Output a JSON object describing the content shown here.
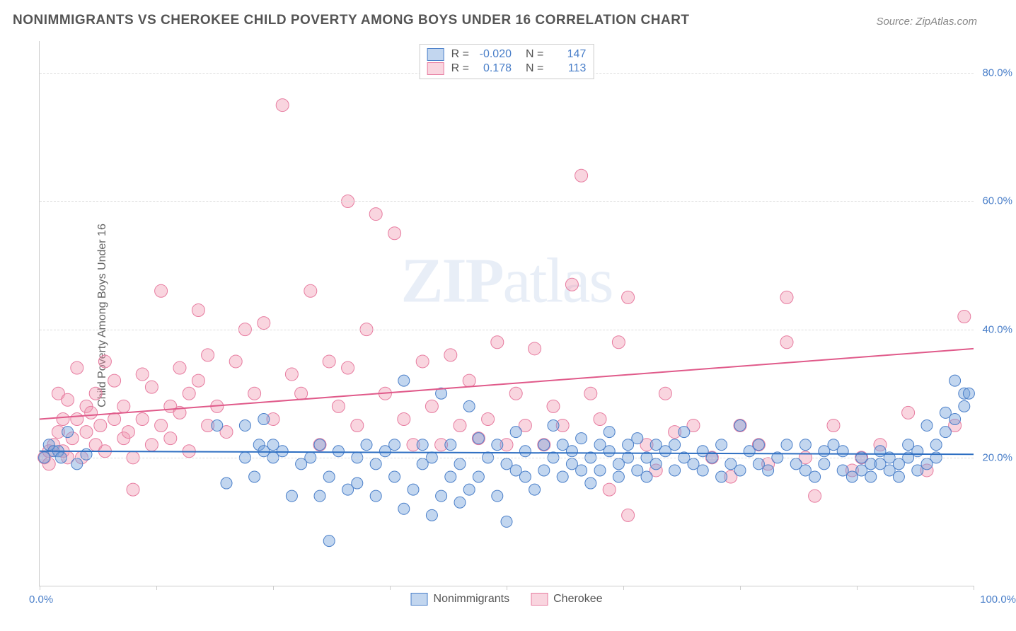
{
  "title": "NONIMMIGRANTS VS CHEROKEE CHILD POVERTY AMONG BOYS UNDER 16 CORRELATION CHART",
  "source": "Source: ZipAtlas.com",
  "ylabel": "Child Poverty Among Boys Under 16",
  "watermark_a": "ZIP",
  "watermark_b": "atlas",
  "xaxis": {
    "min": 0,
    "max": 100,
    "tick_positions": [
      0,
      12.5,
      25,
      37.5,
      50,
      62.5,
      75,
      87.5,
      100
    ],
    "label_min": "0.0%",
    "label_max": "100.0%",
    "label_color": "#4a7fc9"
  },
  "yaxis": {
    "min": 0,
    "max": 85,
    "ticks": [
      {
        "v": 20,
        "label": "20.0%"
      },
      {
        "v": 40,
        "label": "40.0%"
      },
      {
        "v": 60,
        "label": "60.0%"
      },
      {
        "v": 80,
        "label": "80.0%"
      }
    ],
    "label_color": "#4a7fc9",
    "grid_color": "#dddddd"
  },
  "series": [
    {
      "key": "nonimmigrants",
      "name": "Nonimmigrants",
      "marker_fill": "rgba(120,165,220,0.45)",
      "marker_stroke": "#4a7fc9",
      "marker_r": 8,
      "trend_color": "#2e6fc2",
      "trend_width": 2,
      "trend": {
        "y_at_xmin": 21.0,
        "y_at_xmax": 20.5
      },
      "R": "-0.020",
      "N": "147",
      "points": [
        [
          0.5,
          20
        ],
        [
          1,
          22
        ],
        [
          1.5,
          21
        ],
        [
          2,
          21
        ],
        [
          2.3,
          20
        ],
        [
          3,
          24
        ],
        [
          4,
          19
        ],
        [
          5,
          20.5
        ],
        [
          19,
          25
        ],
        [
          20,
          16
        ],
        [
          22,
          20
        ],
        [
          22,
          25
        ],
        [
          23,
          17
        ],
        [
          23.5,
          22
        ],
        [
          24,
          21
        ],
        [
          24,
          26
        ],
        [
          25,
          22
        ],
        [
          25,
          20
        ],
        [
          26,
          21
        ],
        [
          27,
          14
        ],
        [
          28,
          19
        ],
        [
          29,
          20
        ],
        [
          30,
          14
        ],
        [
          30,
          22
        ],
        [
          31,
          7
        ],
        [
          31,
          17
        ],
        [
          32,
          21
        ],
        [
          33,
          15
        ],
        [
          34,
          16
        ],
        [
          34,
          20
        ],
        [
          35,
          22
        ],
        [
          36,
          19
        ],
        [
          36,
          14
        ],
        [
          37,
          21
        ],
        [
          38,
          17
        ],
        [
          38,
          22
        ],
        [
          39,
          12
        ],
        [
          39,
          32
        ],
        [
          40,
          15
        ],
        [
          41,
          19
        ],
        [
          41,
          22
        ],
        [
          42,
          11
        ],
        [
          42,
          20
        ],
        [
          43,
          14
        ],
        [
          43,
          30
        ],
        [
          44,
          17
        ],
        [
          44,
          22
        ],
        [
          45,
          13
        ],
        [
          45,
          19
        ],
        [
          46,
          15
        ],
        [
          46,
          28
        ],
        [
          47,
          17
        ],
        [
          47,
          23
        ],
        [
          48,
          20
        ],
        [
          49,
          14
        ],
        [
          49,
          22
        ],
        [
          50,
          19
        ],
        [
          50,
          10
        ],
        [
          51,
          18
        ],
        [
          51,
          24
        ],
        [
          52,
          17
        ],
        [
          52,
          21
        ],
        [
          53,
          15
        ],
        [
          54,
          22
        ],
        [
          54,
          18
        ],
        [
          55,
          20
        ],
        [
          55,
          25
        ],
        [
          56,
          17
        ],
        [
          56,
          22
        ],
        [
          57,
          21
        ],
        [
          57,
          19
        ],
        [
          58,
          18
        ],
        [
          58,
          23
        ],
        [
          59,
          20
        ],
        [
          59,
          16
        ],
        [
          60,
          22
        ],
        [
          60,
          18
        ],
        [
          61,
          21
        ],
        [
          61,
          24
        ],
        [
          62,
          19
        ],
        [
          62,
          17
        ],
        [
          63,
          22
        ],
        [
          63,
          20
        ],
        [
          64,
          18
        ],
        [
          64,
          23
        ],
        [
          65,
          20
        ],
        [
          65,
          17
        ],
        [
          66,
          22
        ],
        [
          66,
          19
        ],
        [
          67,
          21
        ],
        [
          68,
          18
        ],
        [
          68,
          22
        ],
        [
          69,
          20
        ],
        [
          69,
          24
        ],
        [
          70,
          19
        ],
        [
          71,
          21
        ],
        [
          71,
          18
        ],
        [
          72,
          20
        ],
        [
          73,
          22
        ],
        [
          73,
          17
        ],
        [
          74,
          19
        ],
        [
          75,
          25
        ],
        [
          75,
          18
        ],
        [
          76,
          21
        ],
        [
          77,
          19
        ],
        [
          77,
          22
        ],
        [
          78,
          18
        ],
        [
          79,
          20
        ],
        [
          80,
          22
        ],
        [
          81,
          19
        ],
        [
          82,
          18
        ],
        [
          82,
          22
        ],
        [
          83,
          17
        ],
        [
          84,
          21
        ],
        [
          84,
          19
        ],
        [
          85,
          22
        ],
        [
          86,
          18
        ],
        [
          86,
          21
        ],
        [
          87,
          17
        ],
        [
          88,
          18
        ],
        [
          88,
          20
        ],
        [
          89,
          19
        ],
        [
          89,
          17
        ],
        [
          90,
          19
        ],
        [
          90,
          21
        ],
        [
          91,
          18
        ],
        [
          91,
          20
        ],
        [
          92,
          17
        ],
        [
          92,
          19
        ],
        [
          93,
          20
        ],
        [
          93,
          22
        ],
        [
          94,
          18
        ],
        [
          94,
          21
        ],
        [
          95,
          19
        ],
        [
          95,
          25
        ],
        [
          96,
          22
        ],
        [
          96,
          20
        ],
        [
          97,
          24
        ],
        [
          97,
          27
        ],
        [
          98,
          26
        ],
        [
          98,
          32
        ],
        [
          99,
          28
        ],
        [
          99,
          30
        ],
        [
          99.5,
          30
        ]
      ]
    },
    {
      "key": "cherokee",
      "name": "Cherokee",
      "marker_fill": "rgba(240,150,175,0.40)",
      "marker_stroke": "#e77ca0",
      "marker_r": 9,
      "trend_color": "#e05a8a",
      "trend_width": 2,
      "trend": {
        "y_at_xmin": 26.0,
        "y_at_xmax": 37.0
      },
      "R": "0.178",
      "N": "113",
      "points": [
        [
          0.5,
          20
        ],
        [
          1,
          19
        ],
        [
          1,
          21
        ],
        [
          1.5,
          22
        ],
        [
          2,
          30
        ],
        [
          2,
          24
        ],
        [
          2.5,
          26
        ],
        [
          2.5,
          21
        ],
        [
          3,
          20
        ],
        [
          3,
          29
        ],
        [
          3.5,
          23
        ],
        [
          4,
          34
        ],
        [
          4,
          26
        ],
        [
          4.5,
          20
        ],
        [
          5,
          24
        ],
        [
          5,
          28
        ],
        [
          5.5,
          27
        ],
        [
          6,
          22
        ],
        [
          6,
          30
        ],
        [
          6.5,
          25
        ],
        [
          7,
          35
        ],
        [
          7,
          21
        ],
        [
          8,
          26
        ],
        [
          8,
          32
        ],
        [
          9,
          23
        ],
        [
          9,
          28
        ],
        [
          9.5,
          24
        ],
        [
          10,
          20
        ],
        [
          10,
          15
        ],
        [
          11,
          26
        ],
        [
          11,
          33
        ],
        [
          12,
          22
        ],
        [
          12,
          31
        ],
        [
          13,
          25
        ],
        [
          13,
          46
        ],
        [
          14,
          28
        ],
        [
          14,
          23
        ],
        [
          15,
          34
        ],
        [
          15,
          27
        ],
        [
          16,
          30
        ],
        [
          16,
          21
        ],
        [
          17,
          32
        ],
        [
          17,
          43
        ],
        [
          18,
          25
        ],
        [
          18,
          36
        ],
        [
          19,
          28
        ],
        [
          20,
          24
        ],
        [
          21,
          35
        ],
        [
          22,
          40
        ],
        [
          23,
          30
        ],
        [
          24,
          41
        ],
        [
          25,
          26
        ],
        [
          26,
          75
        ],
        [
          27,
          33
        ],
        [
          28,
          30
        ],
        [
          29,
          46
        ],
        [
          30,
          22
        ],
        [
          31,
          35
        ],
        [
          32,
          28
        ],
        [
          33,
          34
        ],
        [
          33,
          60
        ],
        [
          34,
          25
        ],
        [
          35,
          40
        ],
        [
          36,
          58
        ],
        [
          37,
          30
        ],
        [
          38,
          55
        ],
        [
          39,
          26
        ],
        [
          40,
          22
        ],
        [
          41,
          35
        ],
        [
          42,
          28
        ],
        [
          43,
          22
        ],
        [
          44,
          36
        ],
        [
          45,
          25
        ],
        [
          46,
          32
        ],
        [
          47,
          23
        ],
        [
          48,
          26
        ],
        [
          49,
          38
        ],
        [
          50,
          22
        ],
        [
          51,
          30
        ],
        [
          52,
          25
        ],
        [
          53,
          37
        ],
        [
          54,
          22
        ],
        [
          55,
          28
        ],
        [
          56,
          25
        ],
        [
          57,
          47
        ],
        [
          58,
          64
        ],
        [
          59,
          30
        ],
        [
          60,
          26
        ],
        [
          61,
          15
        ],
        [
          62,
          38
        ],
        [
          63,
          45
        ],
        [
          63,
          11
        ],
        [
          65,
          22
        ],
        [
          66,
          18
        ],
        [
          67,
          30
        ],
        [
          68,
          24
        ],
        [
          70,
          25
        ],
        [
          72,
          20
        ],
        [
          74,
          17
        ],
        [
          75,
          25
        ],
        [
          77,
          22
        ],
        [
          78,
          19
        ],
        [
          80,
          45
        ],
        [
          80,
          38
        ],
        [
          82,
          20
        ],
        [
          83,
          14
        ],
        [
          85,
          25
        ],
        [
          87,
          18
        ],
        [
          88,
          20
        ],
        [
          90,
          22
        ],
        [
          93,
          27
        ],
        [
          95,
          18
        ],
        [
          98,
          25
        ],
        [
          99,
          42
        ]
      ]
    }
  ],
  "legend_top": {
    "r_label": "R =",
    "n_label": "N ="
  }
}
